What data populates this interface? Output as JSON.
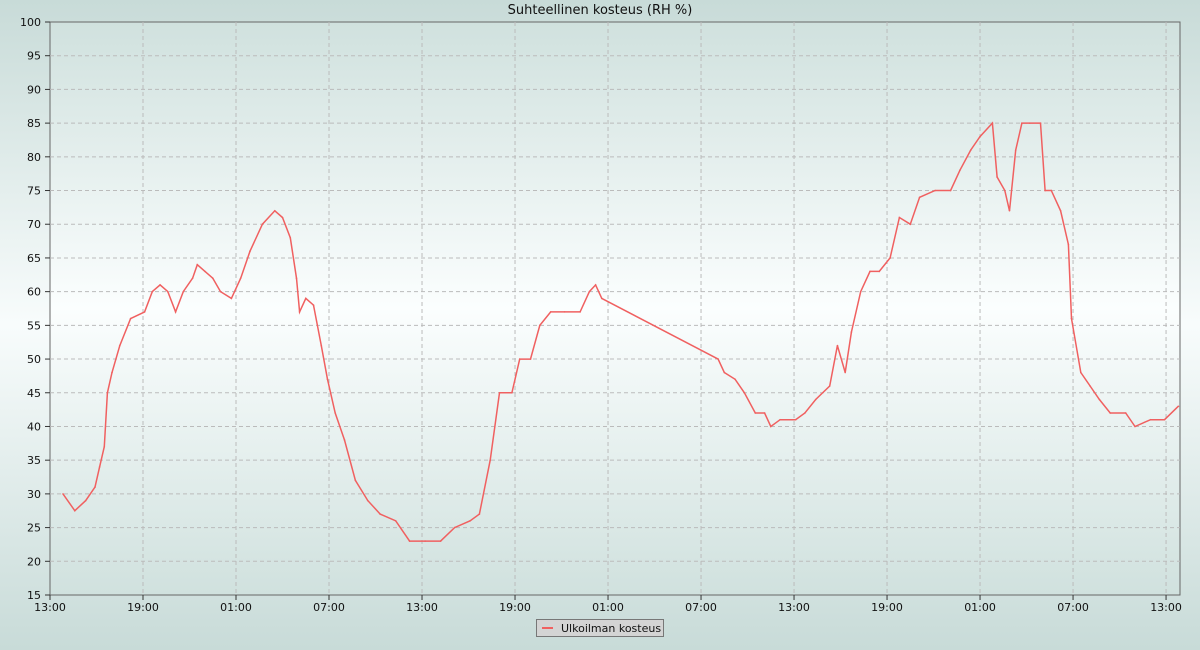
{
  "chart_data": {
    "type": "line",
    "title": "Suhteellinen kosteus (RH %)",
    "xlabel": "",
    "ylabel": "",
    "ylim": [
      15,
      100
    ],
    "yticks": [
      15,
      20,
      25,
      30,
      35,
      40,
      45,
      50,
      55,
      60,
      65,
      70,
      75,
      80,
      85,
      90,
      95,
      100
    ],
    "x_unit": "hours since first 13:00",
    "xlim": [
      0,
      72.9
    ],
    "xtick_labels": [
      "13:00",
      "19:00",
      "01:00",
      "07:00",
      "13:00",
      "19:00",
      "01:00",
      "07:00",
      "13:00",
      "19:00",
      "01:00",
      "07:00",
      "13:00"
    ],
    "xtick_hours": [
      0,
      6,
      12,
      18,
      24,
      30,
      36,
      42,
      48,
      54,
      60,
      66,
      72
    ],
    "grid": true,
    "legend_placement": "bottom-center",
    "series": [
      {
        "name": "Ulkoilman kosteus",
        "color": "#f06060",
        "x": [
          0.84,
          1.6,
          2.3,
          2.9,
          3.2,
          3.5,
          3.7,
          4.0,
          4.5,
          5.2,
          6.1,
          6.6,
          7.1,
          7.6,
          8.1,
          8.6,
          9.2,
          9.5,
          10.0,
          10.5,
          11.0,
          11.7,
          12.3,
          12.9,
          13.7,
          14.5,
          15.0,
          15.5,
          15.9,
          16.1,
          16.5,
          17.0,
          17.5,
          17.9,
          18.4,
          19.0,
          19.7,
          20.5,
          21.3,
          22.3,
          23.2,
          24.2,
          25.2,
          26.1,
          27.1,
          27.7,
          28.4,
          29.0,
          29.8,
          30.3,
          31.0,
          31.6,
          32.3,
          33.2,
          34.2,
          34.8,
          35.2,
          35.6,
          43.1,
          43.5,
          44.2,
          44.8,
          45.5,
          46.1,
          46.5,
          47.1,
          48.1,
          48.7,
          49.4,
          50.3,
          50.8,
          51.3,
          51.7,
          52.3,
          52.9,
          53.5,
          54.2,
          54.8,
          55.5,
          56.1,
          57.1,
          58.1,
          58.7,
          59.4,
          60.0,
          60.8,
          61.1,
          61.6,
          61.9,
          62.3,
          62.7,
          63.2,
          63.9,
          64.2,
          64.6,
          65.2,
          65.7,
          65.9,
          66.5,
          67.1,
          67.7,
          68.4,
          69.4,
          70.0,
          71.0,
          71.9,
          72.8
        ],
        "values": [
          30,
          27.5,
          29,
          31,
          34,
          37,
          45,
          48,
          52,
          56,
          57,
          60,
          61,
          60,
          57,
          60,
          62,
          64,
          63,
          62,
          60,
          59,
          62,
          66,
          70,
          72,
          71,
          68,
          62,
          57,
          59,
          58,
          52,
          47,
          42,
          38,
          32,
          29,
          27,
          26,
          23,
          23,
          23,
          25,
          26,
          27,
          35,
          45,
          45,
          50,
          50,
          55,
          57,
          57,
          57,
          60,
          61,
          59,
          50,
          48,
          47,
          45,
          42,
          42,
          40,
          41,
          41,
          42,
          44,
          46,
          52,
          48,
          54,
          60,
          63,
          63,
          65,
          71,
          70,
          74,
          75,
          75,
          78,
          81,
          83,
          85,
          77,
          75,
          72,
          81,
          85,
          85,
          85,
          75,
          75,
          72,
          67,
          56,
          48,
          46,
          44,
          42,
          42,
          40,
          41,
          41,
          43
        ]
      }
    ]
  }
}
